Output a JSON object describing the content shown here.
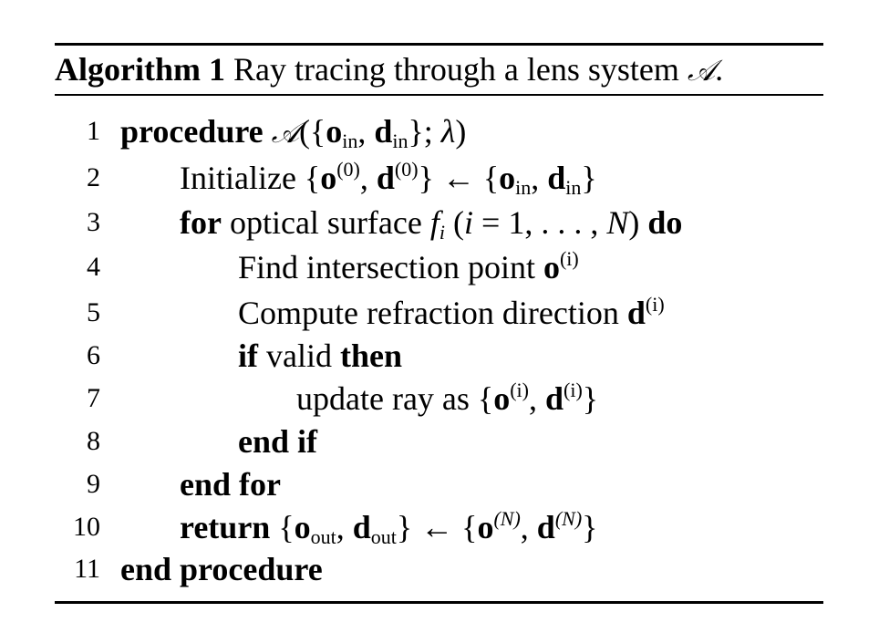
{
  "caption": {
    "label": "Algorithm 1",
    "text": "Ray tracing through a lens system",
    "symbol": "𝒜",
    "period": "."
  },
  "lines": [
    {
      "num": "1",
      "kw1": "procedure",
      "a": "𝒜",
      "b": "({",
      "c": "o",
      "d": "in",
      "e": ", ",
      "f": "d",
      "g": "in",
      "h": "}; ",
      "i": "λ",
      "j": ")"
    },
    {
      "num": "2",
      "pre": "Initialize {",
      "o": "o",
      "o_sup": "(0)",
      "comma": ", ",
      "d": "d",
      "d_sup": "(0)",
      "mid": "} ← {",
      "o2": "o",
      "o2_sub": "in",
      "comma2": ", ",
      "d2": "d",
      "d2_sub": "in",
      "post": "}"
    },
    {
      "num": "3",
      "kw1": "for",
      "t1": " optical surface ",
      "f": "f",
      "f_sub": "i",
      "t2": " (",
      "eq": "i",
      "t3": " = 1, . . . , ",
      "N": "N",
      "t4": ") ",
      "kw2": "do"
    },
    {
      "num": "4",
      "t1": "Find intersection point ",
      "o": "o",
      "o_sup": "(i)"
    },
    {
      "num": "5",
      "t1": "Compute refraction direction ",
      "d": "d",
      "d_sup": "(i)"
    },
    {
      "num": "6",
      "kw1": "if",
      "t1": " valid ",
      "kw2": "then"
    },
    {
      "num": "7",
      "t1": "update ray as {",
      "o": "o",
      "o_sup": "(i)",
      "comma": ", ",
      "d": "d",
      "d_sup": "(i)",
      "post": "}"
    },
    {
      "num": "8",
      "kw1": "end if"
    },
    {
      "num": "9",
      "kw1": "end for"
    },
    {
      "num": "10",
      "kw1": "return",
      "t1": " {",
      "o": "o",
      "o_sub": "out",
      "comma": ", ",
      "d": "d",
      "d_sub": "out",
      "mid": "} ← {",
      "o2": "o",
      "o2_sup": "(N)",
      "comma2": ", ",
      "d2": "d",
      "d2_sup": "(N)",
      "post": "}"
    },
    {
      "num": "11",
      "kw1": "end procedure"
    }
  ]
}
